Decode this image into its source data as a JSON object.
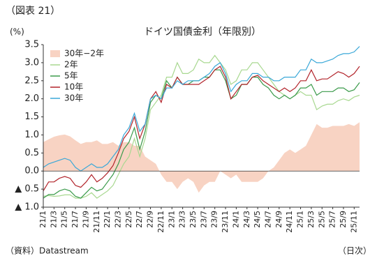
{
  "header": "（図表 21）",
  "chart_data": {
    "type": "line",
    "title": "ドイツ国債金利（年限別）",
    "y_unit": "(%)",
    "source": "（資料）Datastream",
    "frequency": "（日次）",
    "categories": [
      "21/1",
      null,
      "21/3",
      null,
      "21/5",
      null,
      "21/7",
      null,
      "21/9",
      null,
      "21/11",
      null,
      "22/1",
      null,
      "22/3",
      null,
      "22/5",
      null,
      "22/7",
      null,
      "22/9",
      null,
      "22/11",
      null,
      "23/1",
      null,
      "23/3",
      null,
      "23/5",
      null,
      "23/7",
      null,
      "23/9",
      null,
      "23/11",
      null,
      "24/1",
      null,
      "24/3",
      null,
      "24/5",
      null,
      "24/7",
      null,
      "24/9",
      null,
      "24/11",
      null,
      "25/1",
      null,
      "25/3",
      null,
      "25/5",
      null,
      "25/7",
      null,
      "25/9",
      null,
      "25/11",
      null
    ],
    "ylim": [
      -1.0,
      3.5
    ],
    "yticks": [
      {
        "value": -1.0,
        "label": "▲ 1.0"
      },
      {
        "value": -0.5,
        "label": "▲ 0.5"
      },
      {
        "value": 0,
        "label": "0.0"
      },
      {
        "value": 0.5,
        "label": "0.5"
      },
      {
        "value": 1.0,
        "label": "1.0"
      },
      {
        "value": 1.5,
        "label": "1.5"
      },
      {
        "value": 2.0,
        "label": "2.0"
      },
      {
        "value": 2.5,
        "label": "2.5"
      },
      {
        "value": 3.0,
        "label": "3.0"
      },
      {
        "value": 3.5,
        "label": "3.5"
      }
    ],
    "legend": "top-left",
    "series": [
      {
        "name": "30年−2年",
        "color": "#f8d3c3",
        "style": "area",
        "values": [
          0.8,
          0.88,
          0.95,
          0.99,
          1.01,
          0.96,
          0.85,
          0.75,
          0.8,
          0.8,
          0.85,
          0.75,
          0.75,
          0.8,
          0.7,
          0.8,
          0.8,
          0.7,
          0.7,
          0.4,
          0.3,
          0.2,
          -0.1,
          -0.3,
          -0.3,
          -0.5,
          -0.3,
          -0.2,
          -0.3,
          -0.6,
          -0.4,
          -0.3,
          -0.3,
          0,
          -0.1,
          -0.2,
          -0.1,
          -0.3,
          -0.3,
          -0.3,
          -0.3,
          -0.2,
          0,
          0.1,
          0.3,
          0.5,
          0.6,
          0.5,
          0.6,
          0.7,
          1.0,
          1.3,
          1.2,
          1.2,
          1.25,
          1.25,
          1.25,
          1.3,
          1.25,
          1.35
        ]
      },
      {
        "name": "2年",
        "color": "#a8d890",
        "style": "line",
        "values": [
          -0.7,
          -0.68,
          -0.7,
          -0.69,
          -0.66,
          -0.66,
          -0.75,
          -0.75,
          -0.7,
          -0.6,
          -0.75,
          -0.65,
          -0.55,
          -0.4,
          -0.1,
          0.2,
          0.4,
          0.9,
          0.4,
          0.9,
          1.7,
          1.9,
          2.1,
          2.6,
          2.6,
          3.0,
          2.7,
          2.7,
          2.8,
          3.1,
          3.0,
          3.0,
          3.2,
          3.0,
          2.8,
          2.4,
          2.5,
          2.8,
          2.8,
          3.0,
          3.0,
          2.8,
          2.6,
          2.4,
          2.2,
          2.1,
          2.0,
          2.1,
          2.2,
          2.1,
          2.1,
          1.7,
          1.8,
          1.85,
          1.85,
          1.95,
          2.0,
          1.95,
          2.05,
          2.1
        ]
      },
      {
        "name": "5年",
        "color": "#3a9a4a",
        "style": "line",
        "values": [
          -0.75,
          -0.65,
          -0.65,
          -0.55,
          -0.5,
          -0.55,
          -0.7,
          -0.75,
          -0.6,
          -0.45,
          -0.55,
          -0.5,
          -0.3,
          -0.1,
          0.2,
          0.6,
          0.8,
          1.2,
          0.6,
          1.1,
          1.9,
          2.1,
          2.0,
          2.5,
          2.3,
          2.6,
          2.4,
          2.4,
          2.5,
          2.5,
          2.6,
          2.6,
          2.8,
          2.8,
          2.5,
          2.0,
          2.1,
          2.4,
          2.4,
          2.6,
          2.6,
          2.4,
          2.3,
          2.1,
          2.0,
          2.1,
          2.0,
          2.1,
          2.3,
          2.3,
          2.4,
          2.1,
          2.2,
          2.2,
          2.2,
          2.3,
          2.3,
          2.2,
          2.25,
          2.45
        ]
      },
      {
        "name": "10年",
        "color": "#b2232a",
        "style": "line",
        "values": [
          -0.55,
          -0.3,
          -0.3,
          -0.2,
          -0.15,
          -0.2,
          -0.4,
          -0.45,
          -0.3,
          -0.1,
          -0.3,
          -0.2,
          -0.05,
          0.15,
          0.5,
          0.9,
          1.1,
          1.5,
          0.9,
          1.3,
          2.0,
          2.2,
          1.9,
          2.4,
          2.3,
          2.6,
          2.4,
          2.4,
          2.4,
          2.4,
          2.5,
          2.6,
          2.8,
          2.9,
          2.6,
          2.0,
          2.2,
          2.4,
          2.4,
          2.6,
          2.65,
          2.5,
          2.4,
          2.3,
          2.2,
          2.3,
          2.2,
          2.3,
          2.5,
          2.5,
          2.8,
          2.5,
          2.55,
          2.55,
          2.65,
          2.75,
          2.7,
          2.6,
          2.7,
          2.9
        ]
      },
      {
        "name": "30年",
        "color": "#3aa8d8",
        "style": "line",
        "values": [
          0.1,
          0.2,
          0.25,
          0.3,
          0.35,
          0.3,
          0.1,
          0.0,
          0.1,
          0.2,
          0.1,
          0.1,
          0.2,
          0.4,
          0.6,
          1.0,
          1.2,
          1.6,
          1.1,
          1.3,
          2.0,
          2.1,
          2.0,
          2.3,
          2.3,
          2.5,
          2.4,
          2.5,
          2.5,
          2.5,
          2.6,
          2.7,
          2.9,
          3.0,
          2.7,
          2.2,
          2.4,
          2.5,
          2.5,
          2.7,
          2.7,
          2.6,
          2.6,
          2.5,
          2.5,
          2.6,
          2.6,
          2.6,
          2.8,
          2.8,
          3.1,
          3.0,
          3.0,
          3.05,
          3.1,
          3.2,
          3.25,
          3.25,
          3.3,
          3.45
        ]
      }
    ]
  }
}
